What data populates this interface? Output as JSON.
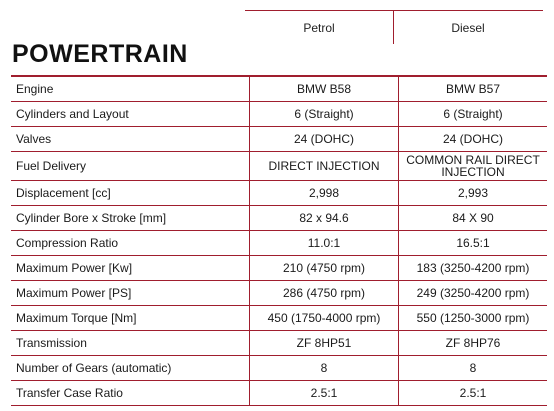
{
  "columns": [
    "Petrol",
    "Diesel"
  ],
  "section_title": "POWERTRAIN",
  "rows": [
    {
      "label": "Engine",
      "petrol": "BMW B58",
      "diesel": "BMW B57"
    },
    {
      "label": "Cylinders and Layout",
      "petrol": "6 (Straight)",
      "diesel": "6 (Straight)"
    },
    {
      "label": "Valves",
      "petrol": "24 (DOHC)",
      "diesel": "24 (DOHC)"
    },
    {
      "label": "Fuel Delivery",
      "petrol": "DIRECT INJECTION",
      "diesel": "COMMON RAIL DIRECT INJECTION"
    },
    {
      "label": "Displacement [cc]",
      "petrol": "2,998",
      "diesel": "2,993"
    },
    {
      "label": "Cylinder Bore x Stroke [mm]",
      "petrol": "82 x 94.6",
      "diesel": "84 X 90"
    },
    {
      "label": "Compression Ratio",
      "petrol": "11.0:1",
      "diesel": "16.5:1"
    },
    {
      "label": "Maximum Power [Kw]",
      "petrol": "210 (4750 rpm)",
      "diesel": "183 (3250-4200 rpm)"
    },
    {
      "label": "Maximum Power [PS]",
      "petrol": "286 (4750 rpm)",
      "diesel": "249 (3250-4200 rpm)"
    },
    {
      "label": "Maximum Torque [Nm]",
      "petrol": "450 (1750-4000 rpm)",
      "diesel": "550 (1250-3000 rpm)"
    },
    {
      "label": "Transmission",
      "petrol": "ZF 8HP51",
      "diesel": "ZF 8HP76"
    },
    {
      "label": "Number of Gears (automatic)",
      "petrol": "8",
      "diesel": "8"
    },
    {
      "label": "Transfer Case Ratio",
      "petrol": "2.5:1",
      "diesel": "2.5:1"
    }
  ]
}
